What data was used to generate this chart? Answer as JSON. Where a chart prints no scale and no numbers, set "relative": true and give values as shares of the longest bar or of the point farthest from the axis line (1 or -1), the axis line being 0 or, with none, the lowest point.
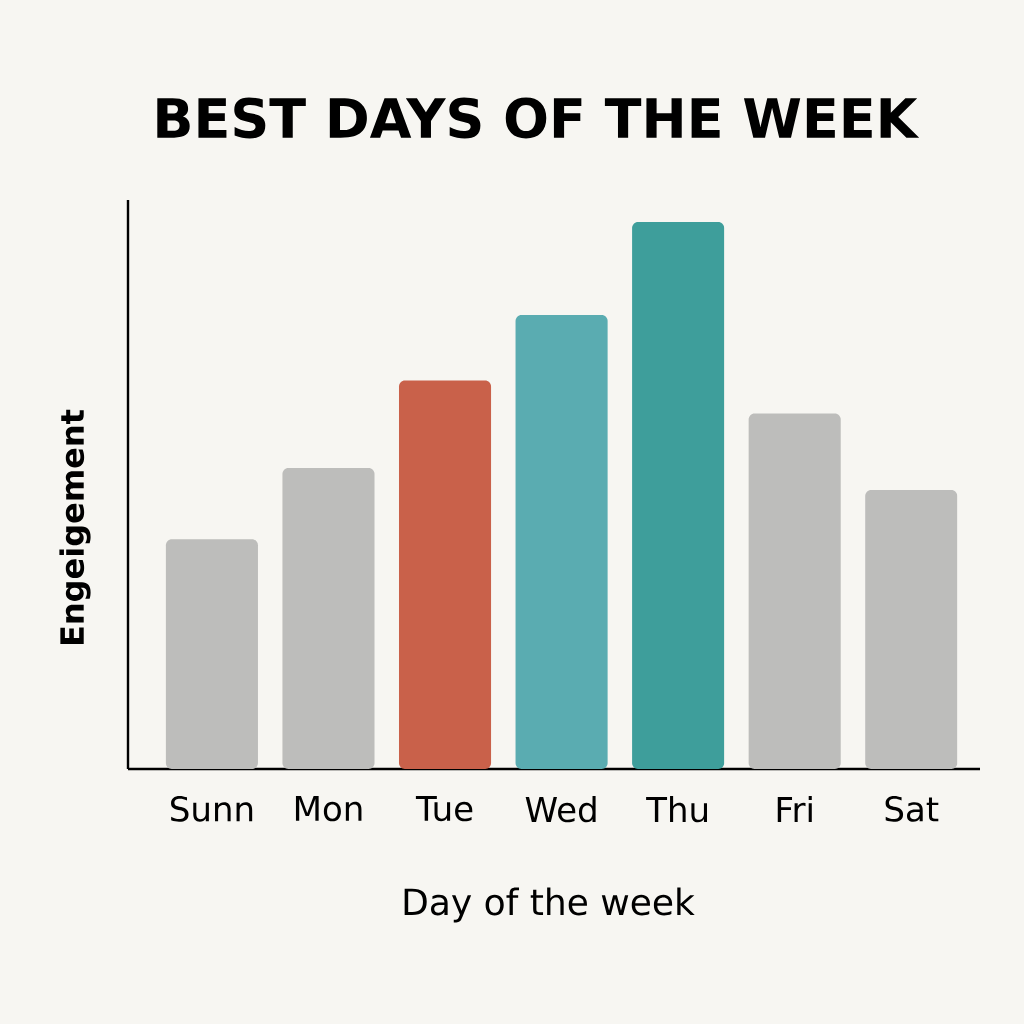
{
  "chart_data": {
    "type": "bar",
    "title": "BEST DAYS OF THE WEEK",
    "xlabel": "Day of the week",
    "ylabel": "Engeigement",
    "relative": true,
    "categories": [
      "Sunn",
      "Mon",
      "Tue",
      "Wed",
      "Thu",
      "Fri",
      "Sat"
    ],
    "values": [
      0.42,
      0.55,
      0.71,
      0.83,
      1,
      0.65,
      0.51
    ],
    "colors": [
      "#bdbdbb",
      "#bdbdbb",
      "#c9614a",
      "#5aacb1",
      "#3e9e9b",
      "#bdbdbb",
      "#bdbdbb"
    ]
  }
}
